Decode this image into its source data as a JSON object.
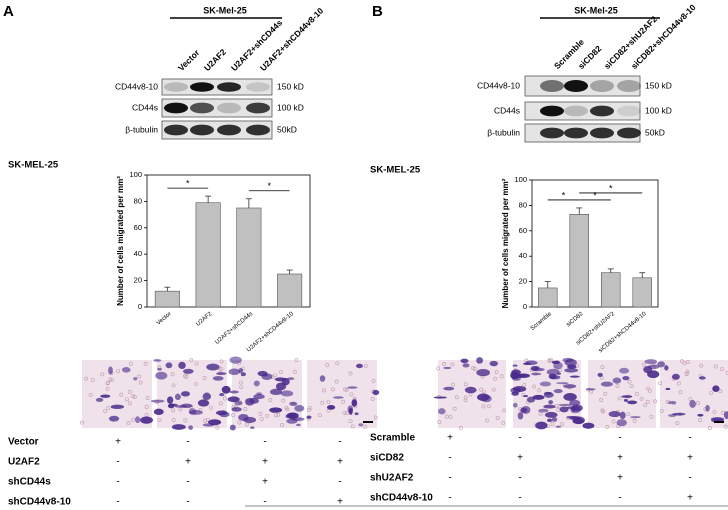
{
  "chart_data": [
    {
      "type": "bar",
      "title": "SK-MEL-25",
      "y_label": "Number of cells migrated per mm²",
      "categories": [
        "Vector",
        "U2AF2",
        "U2AF2+shCD44s",
        "U2AF2+shCD44v8-10"
      ],
      "values": [
        12,
        79,
        75,
        25
      ],
      "errors": [
        3,
        5,
        7,
        3
      ],
      "color": "#c0c0c0",
      "ylim": [
        0,
        100
      ],
      "yticks": [
        0,
        20,
        40,
        60,
        80,
        100
      ],
      "significance": [
        {
          "label": "*",
          "pair": [
            0,
            1
          ]
        },
        {
          "label": "*",
          "pair": [
            2,
            3
          ]
        }
      ]
    },
    {
      "type": "bar",
      "title": "SK-MEL-25",
      "y_label": "Number of cells migrated per mm²",
      "categories": [
        "Scramble",
        "siCD82",
        "siCD82+shU2AF2",
        "siCD82+shCD44v8-10"
      ],
      "values": [
        15,
        73,
        27,
        23
      ],
      "errors": [
        5,
        5,
        3,
        4
      ],
      "color": "#c0c0c0",
      "ylim": [
        0,
        100
      ],
      "yticks": [
        0,
        20,
        40,
        60,
        80,
        100
      ],
      "significance": [
        {
          "label": "*",
          "pair": [
            0,
            1
          ]
        },
        {
          "label": "*",
          "pair": [
            1,
            2
          ]
        },
        {
          "label": "*",
          "pair": [
            1,
            3
          ]
        }
      ]
    }
  ],
  "panels": [
    {
      "label": "A",
      "cell_line": "SK-Mel-25",
      "lanes": [
        "Vector",
        "U2AF2",
        "U2AF2+shCD44s",
        "U2AF2+shCD44v8-10"
      ],
      "blots": [
        {
          "name": "CD44v8-10",
          "size": "150 kD"
        },
        {
          "name": "CD44s",
          "size": "100 kD"
        },
        {
          "name": "β-tubulin",
          "size": "50kD"
        }
      ],
      "conditions": [
        {
          "name": "Vector",
          "marks": [
            "+",
            "-",
            "-",
            "-"
          ]
        },
        {
          "name": "U2AF2",
          "marks": [
            "-",
            "+",
            "+",
            "+"
          ]
        },
        {
          "name": "shCD44s",
          "marks": [
            "-",
            "-",
            "+",
            "-"
          ]
        },
        {
          "name": "shCD44v8-10",
          "marks": [
            "-",
            "-",
            "-",
            "+"
          ]
        }
      ]
    },
    {
      "label": "B",
      "cell_line": "SK-Mel-25",
      "lanes": [
        "Scramble",
        "siCD82",
        "siCD82+shU2AF2",
        "siCD82+shCD44v8-10"
      ],
      "blots": [
        {
          "name": "CD44v8-10",
          "size": "150 kD"
        },
        {
          "name": "CD44s",
          "size": "100 kD"
        },
        {
          "name": "β-tubulin",
          "size": "50kD"
        }
      ],
      "conditions": [
        {
          "name": "Scramble",
          "marks": [
            "+",
            "-",
            "-",
            "-"
          ]
        },
        {
          "name": "siCD82",
          "marks": [
            "-",
            "+",
            "+",
            "+"
          ]
        },
        {
          "name": "shU2AF2",
          "marks": [
            "-",
            "-",
            "+",
            "-"
          ]
        },
        {
          "name": "shCD44v8-10",
          "marks": [
            "-",
            "-",
            "-",
            "+"
          ]
        }
      ]
    }
  ]
}
